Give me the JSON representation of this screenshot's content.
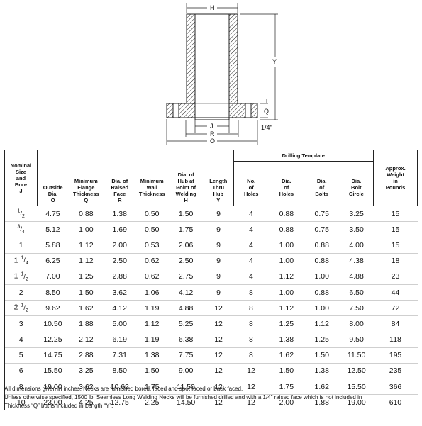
{
  "drawing": {
    "dim_H": "H",
    "dim_Y": "Y",
    "dim_Q": "Q",
    "dim_J": "J",
    "dim_R": "R",
    "dim_O": "O",
    "dim_raised_face": "1/4\""
  },
  "table": {
    "group_header": "Drilling Template",
    "headers": {
      "nominal": [
        "Nominal",
        "Size",
        "and",
        "Bore",
        "J"
      ],
      "od": [
        "Outside",
        "Dia.",
        "O"
      ],
      "flange_thickness": [
        "Minimum",
        "Flange",
        "Thickness",
        "Q"
      ],
      "raised_face": [
        "Dia. of",
        "Raised",
        "Face",
        "R"
      ],
      "wall": [
        "Minimum",
        "Wall",
        "Thickness"
      ],
      "hub": [
        "Dia. of",
        "Hub at",
        "Point of",
        "Welding",
        "H"
      ],
      "length": [
        "Length",
        "Thru",
        "Hub",
        "Y"
      ],
      "num_holes": [
        "No.",
        "of",
        "Holes"
      ],
      "dia_holes": [
        "Dia.",
        "of",
        "Holes"
      ],
      "dia_bolts": [
        "Dia.",
        "of",
        "Bolts"
      ],
      "bolt_circle": [
        "Dia.",
        "Bolt",
        "Circle"
      ],
      "weight": [
        "Approx.",
        "Weight",
        "in",
        "Pounds"
      ]
    },
    "rows": [
      {
        "size_whole": "",
        "size_num": "1",
        "size_den": "2",
        "od": "4.75",
        "q": "0.88",
        "r": "1.38",
        "wall": "0.50",
        "h": "1.50",
        "y": "9",
        "holes": "4",
        "hole_dia": "0.88",
        "bolt_dia": "0.75",
        "bolt_circle": "3.25",
        "weight": "15"
      },
      {
        "size_whole": "",
        "size_num": "3",
        "size_den": "4",
        "od": "5.12",
        "q": "1.00",
        "r": "1.69",
        "wall": "0.50",
        "h": "1.75",
        "y": "9",
        "holes": "4",
        "hole_dia": "0.88",
        "bolt_dia": "0.75",
        "bolt_circle": "3.50",
        "weight": "15"
      },
      {
        "size_whole": "1",
        "size_num": "",
        "size_den": "",
        "od": "5.88",
        "q": "1.12",
        "r": "2.00",
        "wall": "0.53",
        "h": "2.06",
        "y": "9",
        "holes": "4",
        "hole_dia": "1.00",
        "bolt_dia": "0.88",
        "bolt_circle": "4.00",
        "weight": "15"
      },
      {
        "size_whole": "1",
        "size_num": "1",
        "size_den": "4",
        "od": "6.25",
        "q": "1.12",
        "r": "2.50",
        "wall": "0.62",
        "h": "2.50",
        "y": "9",
        "holes": "4",
        "hole_dia": "1.00",
        "bolt_dia": "0.88",
        "bolt_circle": "4.38",
        "weight": "18"
      },
      {
        "size_whole": "1",
        "size_num": "1",
        "size_den": "2",
        "od": "7.00",
        "q": "1.25",
        "r": "2.88",
        "wall": "0.62",
        "h": "2.75",
        "y": "9",
        "holes": "4",
        "hole_dia": "1.12",
        "bolt_dia": "1.00",
        "bolt_circle": "4.88",
        "weight": "23"
      },
      {
        "size_whole": "2",
        "size_num": "",
        "size_den": "",
        "od": "8.50",
        "q": "1.50",
        "r": "3.62",
        "wall": "1.06",
        "h": "4.12",
        "y": "9",
        "holes": "8",
        "hole_dia": "1.00",
        "bolt_dia": "0.88",
        "bolt_circle": "6.50",
        "weight": "44"
      },
      {
        "size_whole": "2",
        "size_num": "1",
        "size_den": "2",
        "od": "9.62",
        "q": "1.62",
        "r": "4.12",
        "wall": "1.19",
        "h": "4.88",
        "y": "12",
        "holes": "8",
        "hole_dia": "1.12",
        "bolt_dia": "1.00",
        "bolt_circle": "7.50",
        "weight": "72"
      },
      {
        "size_whole": "3",
        "size_num": "",
        "size_den": "",
        "od": "10.50",
        "q": "1.88",
        "r": "5.00",
        "wall": "1.12",
        "h": "5.25",
        "y": "12",
        "holes": "8",
        "hole_dia": "1.25",
        "bolt_dia": "1.12",
        "bolt_circle": "8.00",
        "weight": "84"
      },
      {
        "size_whole": "4",
        "size_num": "",
        "size_den": "",
        "od": "12.25",
        "q": "2.12",
        "r": "6.19",
        "wall": "1.19",
        "h": "6.38",
        "y": "12",
        "holes": "8",
        "hole_dia": "1.38",
        "bolt_dia": "1.25",
        "bolt_circle": "9.50",
        "weight": "118"
      },
      {
        "size_whole": "5",
        "size_num": "",
        "size_den": "",
        "od": "14.75",
        "q": "2.88",
        "r": "7.31",
        "wall": "1.38",
        "h": "7.75",
        "y": "12",
        "holes": "8",
        "hole_dia": "1.62",
        "bolt_dia": "1.50",
        "bolt_circle": "11.50",
        "weight": "195"
      },
      {
        "size_whole": "6",
        "size_num": "",
        "size_den": "",
        "od": "15.50",
        "q": "3.25",
        "r": "8.50",
        "wall": "1.50",
        "h": "9.00",
        "y": "12",
        "holes": "12",
        "hole_dia": "1.50",
        "bolt_dia": "1.38",
        "bolt_circle": "12.50",
        "weight": "235"
      },
      {
        "size_whole": "8",
        "size_num": "",
        "size_den": "",
        "od": "19.00",
        "q": "3.62",
        "r": "10.62",
        "wall": "1.75",
        "h": "11.50",
        "y": "12",
        "holes": "12",
        "hole_dia": "1.75",
        "bolt_dia": "1.62",
        "bolt_circle": "15.50",
        "weight": "366"
      },
      {
        "size_whole": "10",
        "size_num": "",
        "size_den": "",
        "od": "23.00",
        "q": "4.25",
        "r": "12.75",
        "wall": "2.25",
        "h": "14.50",
        "y": "12",
        "holes": "12",
        "hole_dia": "2.00",
        "bolt_dia": "1.88",
        "bolt_circle": "19.00",
        "weight": "610"
      }
    ]
  },
  "footnotes": [
    "All dimensions given in inches. Necks are furnished bored, faced and spot faced or back faced.",
    "Unless otherwise specified, 1500 lb. Seamless Long Welding Necks will be furnished drilled and with a 1/4\" raised face which is not included in",
    "Thickness “Q” but is included in Length “Y”."
  ]
}
